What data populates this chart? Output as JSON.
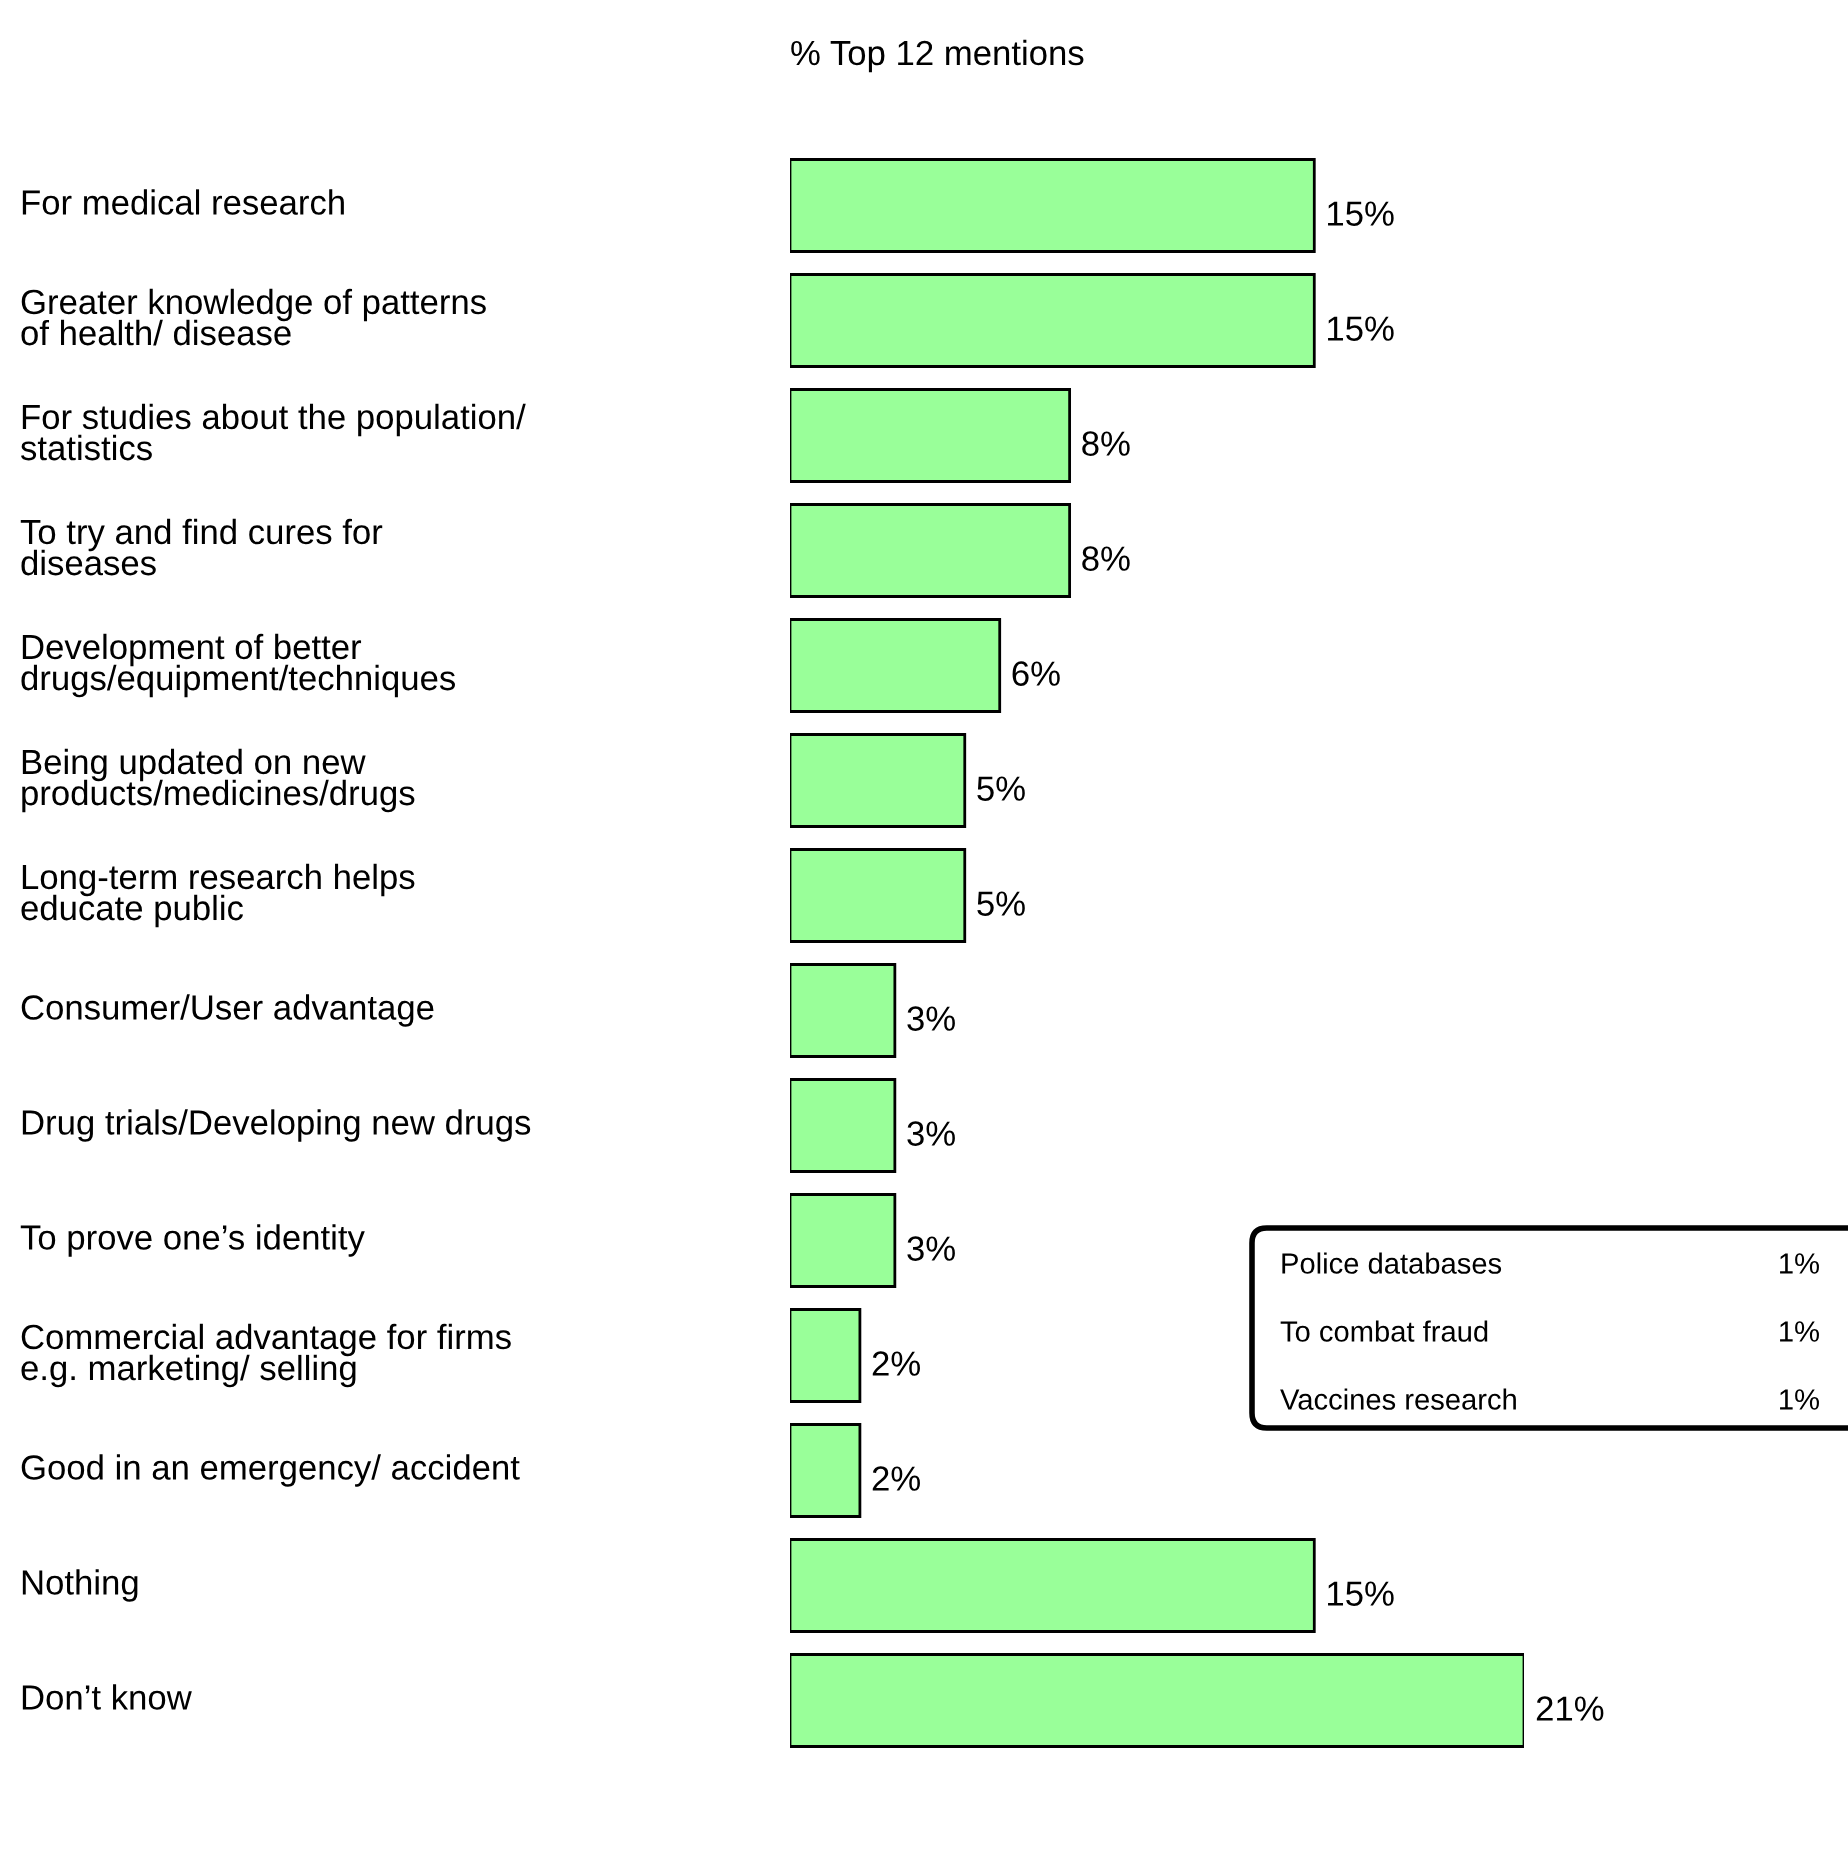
{
  "chart_data": {
    "type": "bar",
    "orientation": "horizontal",
    "title": "% Top 12 mentions",
    "categories": [
      "For medical research",
      "Greater knowledge of patterns\nof health/ disease",
      "For studies about the population/\nstatistics",
      "To try and find cures for\ndiseases",
      "Development of better\ndrugs/equipment/techniques",
      "Being updated on new\nproducts/medicines/drugs",
      "Long-term research helps\neducate public",
      "Consumer/User advantage",
      "Drug trials/Developing new drugs",
      "To prove one’s identity",
      "Commercial advantage for firms\ne.g. marketing/ selling",
      "Good in an emergency/ accident",
      "Nothing",
      "Don’t know"
    ],
    "values": [
      15,
      15,
      8,
      8,
      6,
      5,
      5,
      3,
      3,
      3,
      2,
      2,
      15,
      21
    ],
    "value_labels": [
      "15%",
      "15%",
      "8%",
      "8%",
      "6%",
      "5%",
      "5%",
      "3%",
      "3%",
      "3%",
      "2%",
      "2%",
      "15%",
      "21%"
    ],
    "color": "#99ff99",
    "annotations": [
      "Police databases",
      "1%",
      "To combat fraud",
      "1%",
      "Vaccines research",
      "1%"
    ]
  }
}
